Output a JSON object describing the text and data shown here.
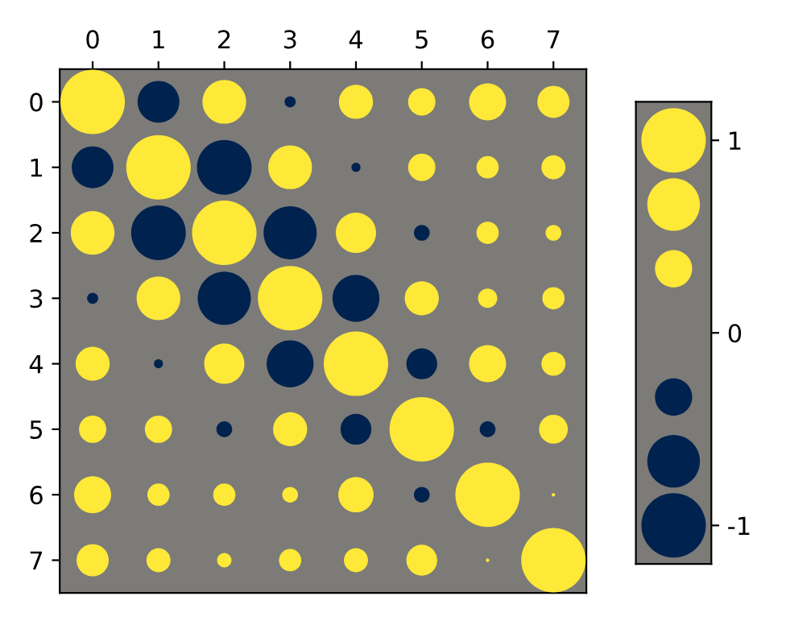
{
  "chart_data": [
    {
      "type": "bubble",
      "xlim": [
        -0.5,
        7.5
      ],
      "ylim": [
        7.5,
        -0.5
      ],
      "xticks": [
        0,
        1,
        2,
        3,
        4,
        5,
        6,
        7
      ],
      "yticks": [
        0,
        1,
        2,
        3,
        4,
        5,
        6,
        7
      ],
      "series": [
        {
          "color": "#fee838",
          "x": [
            0,
            2,
            4,
            5,
            6,
            7,
            1,
            3,
            5,
            6,
            7,
            0,
            2,
            4,
            6,
            7,
            1,
            3,
            5,
            6,
            7,
            0,
            2,
            4,
            6,
            7,
            0,
            1,
            3,
            5,
            7,
            0,
            1,
            2,
            3,
            4,
            6,
            7,
            0,
            1,
            2,
            3,
            4,
            5,
            6,
            7
          ],
          "values": [
            0,
            0,
            0,
            0,
            0,
            0,
            1,
            1,
            1,
            1,
            1,
            2,
            2,
            2,
            2,
            2,
            3,
            3,
            3,
            3,
            3,
            4,
            4,
            4,
            4,
            4,
            5,
            5,
            5,
            5,
            5,
            6,
            6,
            6,
            6,
            6,
            6,
            6,
            7,
            7,
            7,
            7,
            7,
            7,
            7,
            7
          ],
          "sizes": [
            1,
            0.46,
            0.28,
            0.18,
            0.33,
            0.25,
            1,
            0.46,
            0.18,
            0.12,
            0.14,
            0.46,
            1,
            0.39,
            0.12,
            0.06,
            0.46,
            1,
            0.28,
            0.09,
            0.12,
            0.28,
            0.39,
            1,
            0.33,
            0.14,
            0.18,
            0.18,
            0.28,
            1,
            0.2,
            0.33,
            0.12,
            0.12,
            0.06,
            0.3,
            1,
            0.003,
            0.25,
            0.14,
            0.05,
            0.12,
            0.14,
            0.23,
            0.003,
            1
          ]
        },
        {
          "color": "#00224e",
          "x": [
            1,
            3,
            0,
            2,
            4,
            1,
            3,
            5,
            0,
            2,
            4,
            1,
            3,
            5,
            2,
            4,
            6,
            5
          ],
          "values": [
            0,
            0,
            1,
            1,
            1,
            2,
            2,
            2,
            3,
            3,
            3,
            4,
            4,
            4,
            5,
            5,
            5,
            6
          ],
          "sizes": [
            0.42,
            0.03,
            0.42,
            0.72,
            0.02,
            0.72,
            0.68,
            0.06,
            0.03,
            0.68,
            0.53,
            0.02,
            0.53,
            0.23,
            0.06,
            0.23,
            0.06,
            0.06
          ]
        }
      ]
    },
    {
      "type": "other",
      "annotations": [
        "1",
        "0",
        "-1"
      ],
      "colors": [
        "#fee838",
        "#00224e"
      ]
    }
  ]
}
